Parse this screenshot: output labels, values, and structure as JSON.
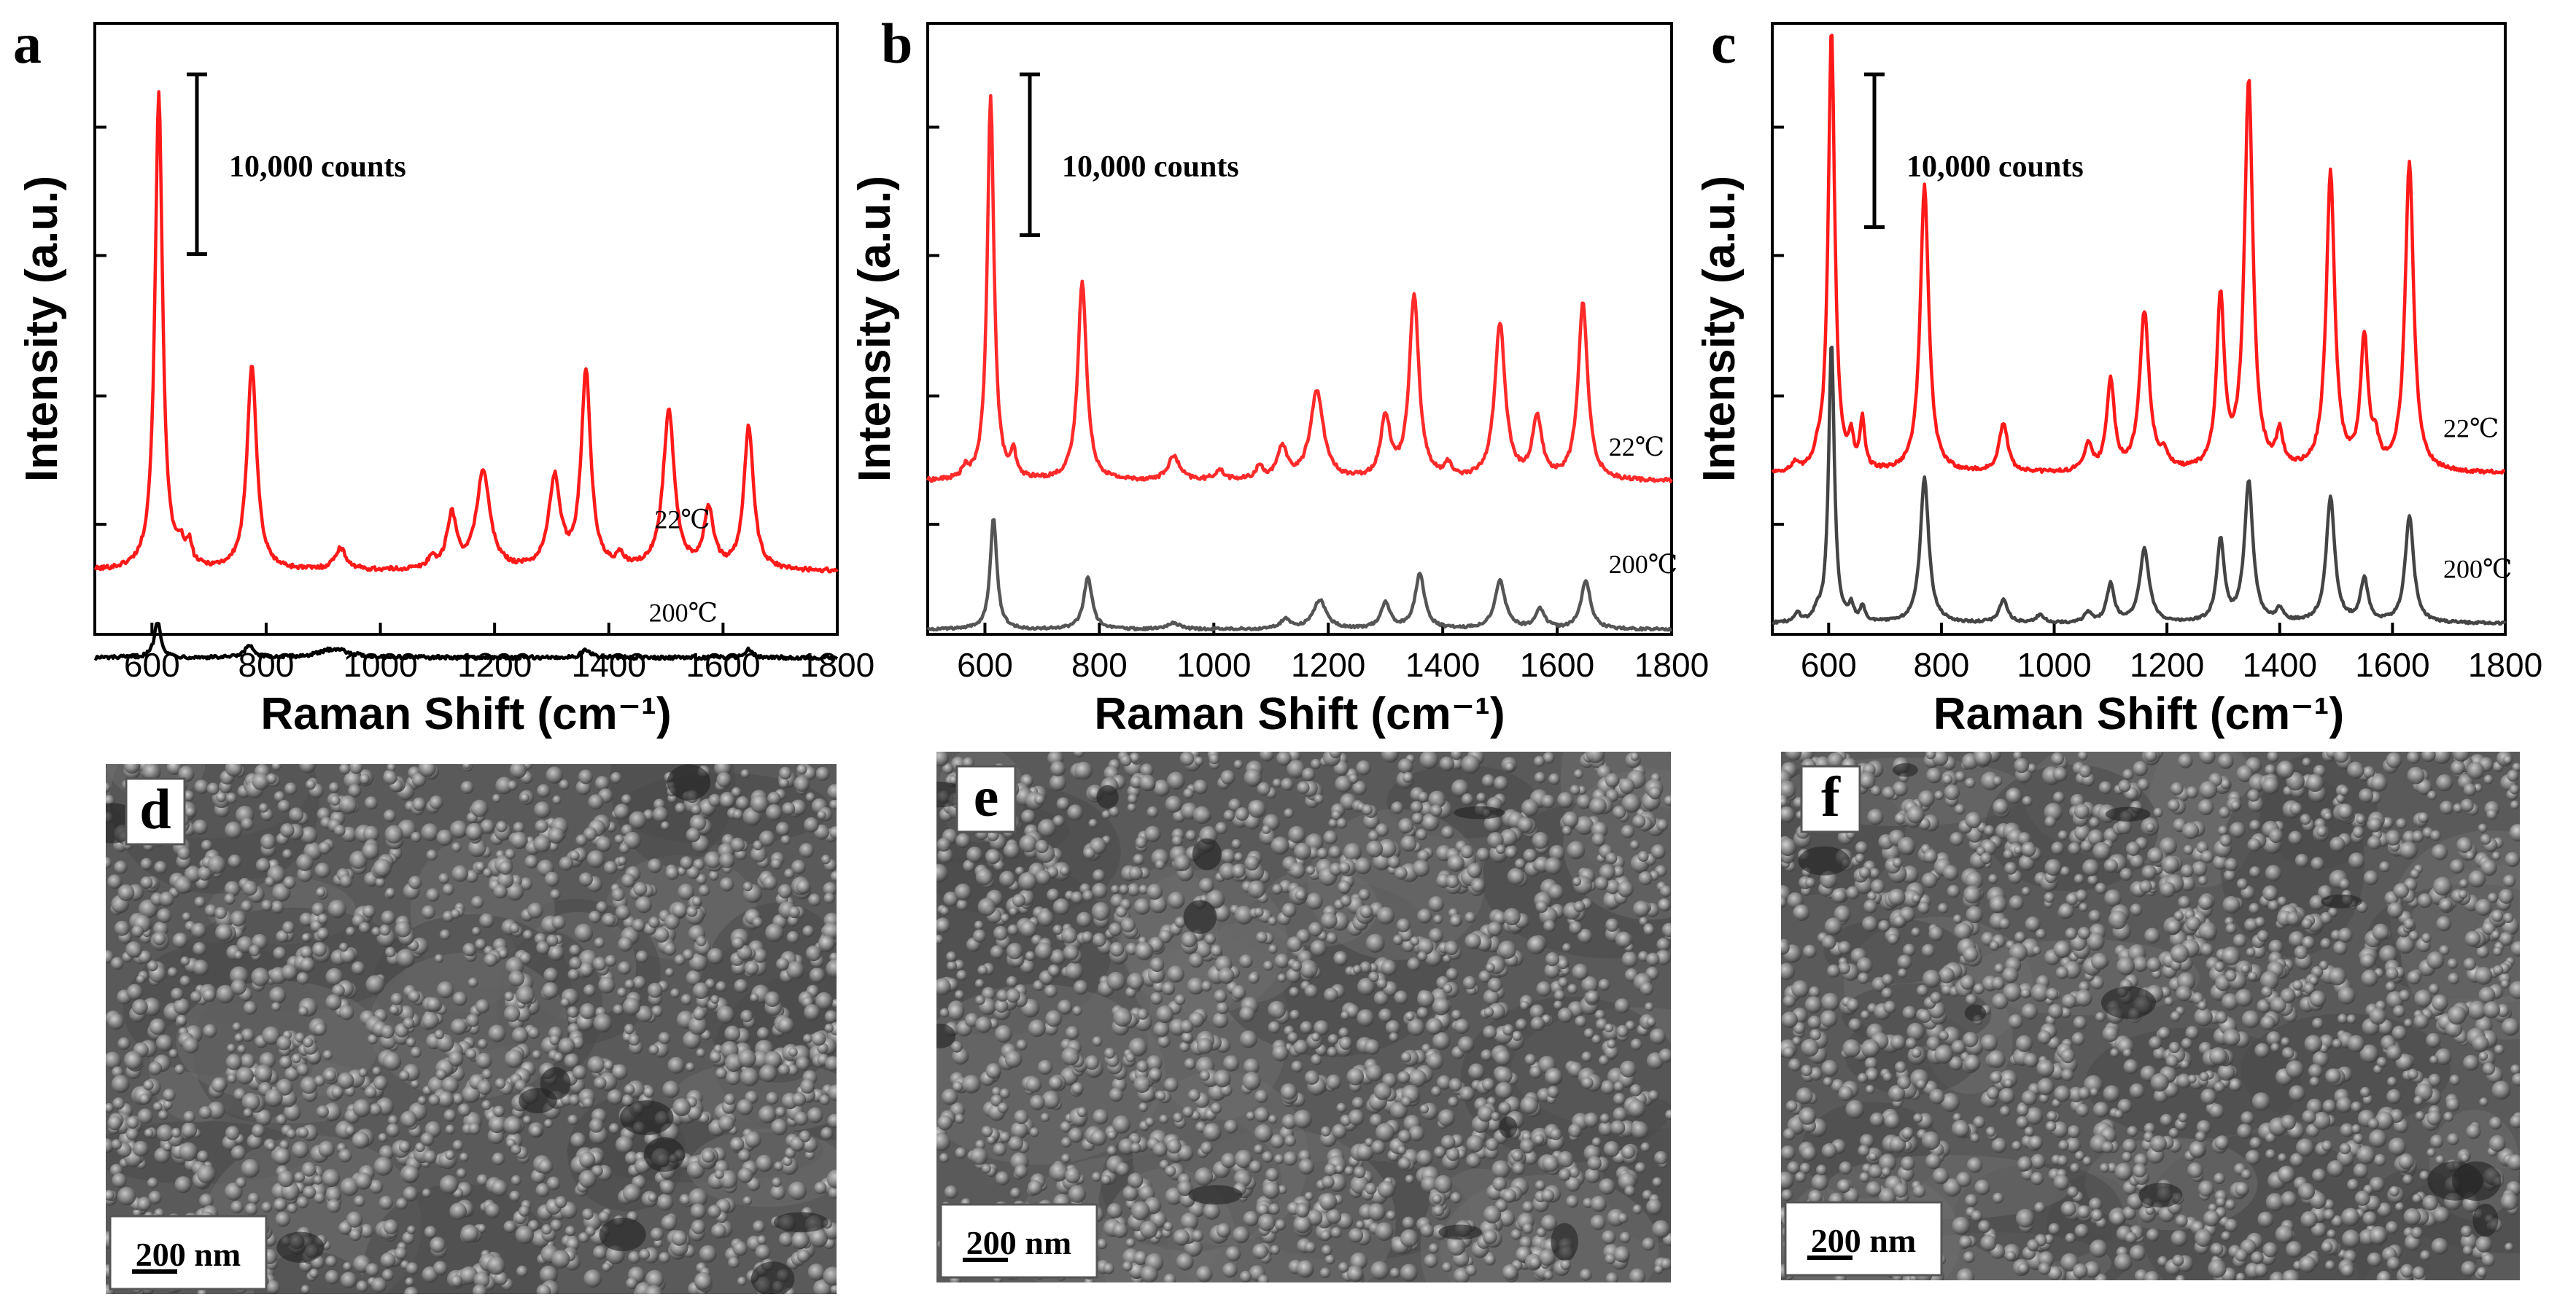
{
  "chart_data": [
    {
      "type": "line",
      "panel": "a",
      "xlabel": "Raman Shift (cm⁻¹)",
      "ylabel": "Intensity (a.u.)",
      "xlim": [
        500,
        1800
      ],
      "xticks": [
        600,
        800,
        1000,
        1200,
        1400,
        1600,
        1800
      ],
      "ylim": [
        -0.35,
        3.05
      ],
      "scale_bar": {
        "label": "10,000 counts",
        "value": 1.0
      },
      "series": [
        {
          "name": "22℃",
          "color": "#ff1a1a",
          "baseline": 0.0,
          "noise": 0.012,
          "peaks": [
            [
              612,
              2.65,
              8
            ],
            [
              650,
              0.1,
              6
            ],
            [
              665,
              0.12,
              6
            ],
            [
              775,
              1.15,
              10
            ],
            [
              930,
              0.12,
              12
            ],
            [
              1090,
              0.06,
              8
            ],
            [
              1125,
              0.3,
              10
            ],
            [
              1180,
              0.55,
              14
            ],
            [
              1305,
              0.5,
              12
            ],
            [
              1360,
              1.1,
              10
            ],
            [
              1420,
              0.06,
              8
            ],
            [
              1505,
              0.88,
              12
            ],
            [
              1575,
              0.33,
              10
            ],
            [
              1645,
              0.8,
              10
            ]
          ],
          "label_position": [
            1480,
            0.24
          ]
        },
        {
          "name": "200℃",
          "color": "#000000",
          "baseline": -0.48,
          "noise": 0.01,
          "peaks": [
            [
              610,
              0.2,
              7
            ],
            [
              770,
              0.07,
              8
            ],
            [
              920,
              0.05,
              30
            ],
            [
              1360,
              0.04,
              10
            ],
            [
              1645,
              0.05,
              8
            ]
          ],
          "label_position": [
            1470,
            -0.28
          ]
        }
      ]
    },
    {
      "type": "line",
      "panel": "b",
      "xlabel": "Raman Shift (cm⁻¹)",
      "ylabel": "Intensity (a.u.)",
      "xlim": [
        500,
        1800
      ],
      "xticks": [
        600,
        800,
        1000,
        1200,
        1400,
        1600,
        1800
      ],
      "ylim": [
        -0.95,
        2.85
      ],
      "scale_bar": {
        "label": "10,000 counts",
        "value": 1.0
      },
      "series": [
        {
          "name": "22℃",
          "color": "#ff2a2a",
          "baseline": 0.0,
          "noise": 0.012,
          "peaks": [
            [
              565,
              0.06,
              6
            ],
            [
              610,
              2.4,
              7
            ],
            [
              650,
              0.15,
              5
            ],
            [
              770,
              1.25,
              9
            ],
            [
              930,
              0.15,
              12
            ],
            [
              1010,
              0.06,
              10
            ],
            [
              1080,
              0.08,
              8
            ],
            [
              1120,
              0.2,
              10
            ],
            [
              1180,
              0.55,
              14
            ],
            [
              1300,
              0.38,
              10
            ],
            [
              1350,
              1.15,
              10
            ],
            [
              1410,
              0.08,
              8
            ],
            [
              1500,
              0.97,
              11
            ],
            [
              1565,
              0.38,
              10
            ],
            [
              1645,
              1.1,
              10
            ]
          ],
          "label_position": [
            1690,
            0.16
          ]
        },
        {
          "name": "200℃",
          "color": "#555555",
          "baseline": -0.92,
          "noise": 0.008,
          "peaks": [
            [
              615,
              0.7,
              7
            ],
            [
              780,
              0.32,
              9
            ],
            [
              930,
              0.04,
              12
            ],
            [
              1125,
              0.06,
              10
            ],
            [
              1185,
              0.18,
              14
            ],
            [
              1300,
              0.16,
              10
            ],
            [
              1360,
              0.34,
              10
            ],
            [
              1500,
              0.3,
              11
            ],
            [
              1570,
              0.12,
              10
            ],
            [
              1650,
              0.3,
              10
            ]
          ],
          "label_position": [
            1690,
            -0.57
          ]
        }
      ]
    },
    {
      "type": "line",
      "panel": "c",
      "xlabel": "Raman Shift (cm⁻¹)",
      "ylabel": "Intensity (a.u.)",
      "xlim": [
        500,
        1800
      ],
      "xticks": [
        600,
        800,
        1000,
        1200,
        1400,
        1600,
        1800
      ],
      "ylim": [
        -1.05,
        2.95
      ],
      "scale_bar": {
        "label": "10,000 counts",
        "value": 1.0
      },
      "series": [
        {
          "name": "22℃",
          "color": "#ff1a1a",
          "baseline": 0.0,
          "noise": 0.012,
          "peaks": [
            [
              540,
              0.05,
              6
            ],
            [
              580,
              0.08,
              6
            ],
            [
              605,
              2.9,
              7
            ],
            [
              640,
              0.18,
              5
            ],
            [
              660,
              0.32,
              5
            ],
            [
              770,
              1.88,
              9
            ],
            [
              910,
              0.32,
              9
            ],
            [
              1060,
              0.18,
              8
            ],
            [
              1100,
              0.6,
              8
            ],
            [
              1160,
              1.04,
              10
            ],
            [
              1195,
              0.1,
              8
            ],
            [
              1295,
              1.12,
              8
            ],
            [
              1345,
              2.55,
              9
            ],
            [
              1400,
              0.22,
              7
            ],
            [
              1490,
              1.95,
              9
            ],
            [
              1550,
              0.85,
              8
            ],
            [
              1570,
              0.15,
              7
            ],
            [
              1630,
              2.02,
              9
            ]
          ],
          "label_position": [
            1690,
            0.24
          ]
        },
        {
          "name": "200℃",
          "color": "#444444",
          "baseline": -0.98,
          "noise": 0.008,
          "peaks": [
            [
              545,
              0.06,
              6
            ],
            [
              580,
              0.06,
              6
            ],
            [
              605,
              1.85,
              6
            ],
            [
              640,
              0.1,
              5
            ],
            [
              660,
              0.1,
              5
            ],
            [
              770,
              0.95,
              9
            ],
            [
              910,
              0.15,
              9
            ],
            [
              975,
              0.05,
              8
            ],
            [
              1060,
              0.06,
              8
            ],
            [
              1100,
              0.25,
              8
            ],
            [
              1160,
              0.48,
              10
            ],
            [
              1295,
              0.53,
              8
            ],
            [
              1345,
              0.92,
              9
            ],
            [
              1400,
              0.08,
              7
            ],
            [
              1490,
              0.82,
              9
            ],
            [
              1550,
              0.28,
              8
            ],
            [
              1630,
              0.7,
              9
            ]
          ],
          "label_position": [
            1690,
            -0.68
          ]
        }
      ]
    }
  ],
  "sem_panels": [
    {
      "letter": "d",
      "scale_label": "200 nm",
      "seed": 11
    },
    {
      "letter": "e",
      "scale_label": "200 nm",
      "seed": 29
    },
    {
      "letter": "f",
      "scale_label": "200 nm",
      "seed": 47
    }
  ]
}
